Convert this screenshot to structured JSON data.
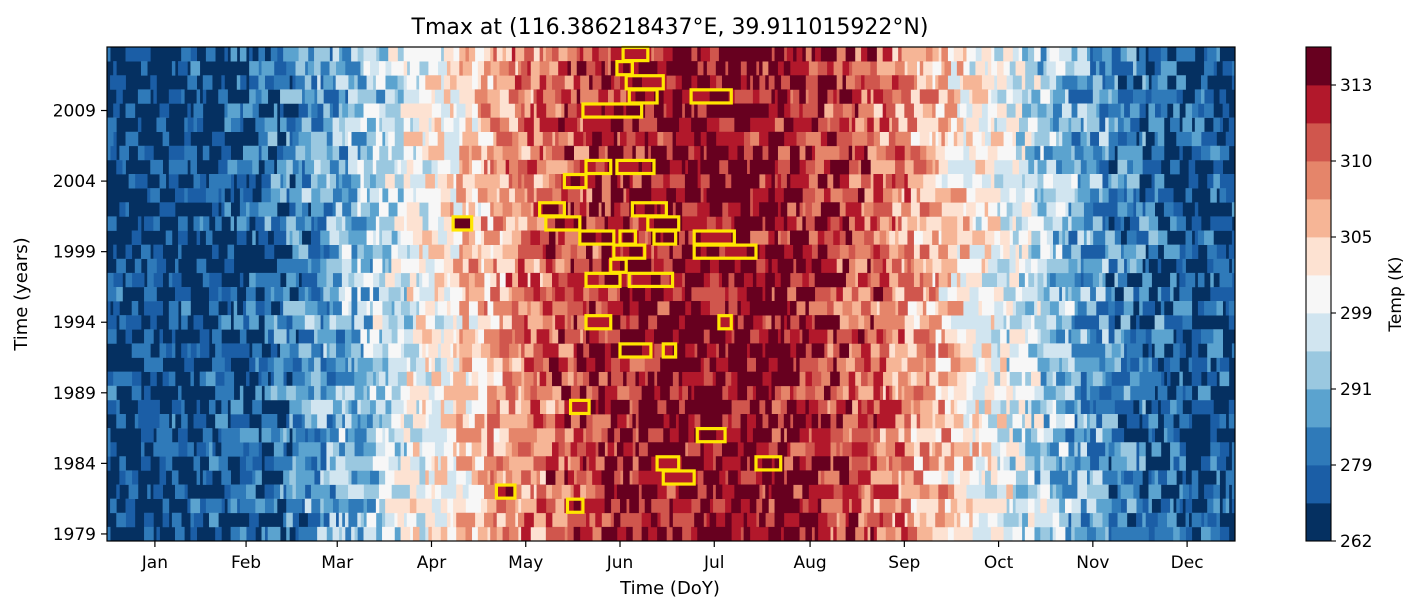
{
  "chart_data": {
    "type": "heatmap",
    "title": "Tmax at (116.386218437°E, 39.911015922°N)",
    "xlabel": "Time (DoY)",
    "ylabel": "Time (years)",
    "x_ticks": [
      "Jan",
      "Feb",
      "Mar",
      "Apr",
      "May",
      "Jun",
      "Jul",
      "Aug",
      "Sep",
      "Oct",
      "Nov",
      "Dec"
    ],
    "y_ticks": [
      "1979",
      "1984",
      "1989",
      "1994",
      "1999",
      "2004",
      "2009"
    ],
    "year_range": [
      1979,
      2013
    ],
    "day_range": [
      1,
      365
    ],
    "colorbar": {
      "label": "Temp (K)",
      "ticks": [
        "262",
        "279",
        "291",
        "299",
        "305",
        "310",
        "313"
      ],
      "colors": [
        "#053061",
        "#1b5ea6",
        "#2f7ab9",
        "#5ba3cf",
        "#9ac8e0",
        "#d1e5f0",
        "#f7f7f7",
        "#fde2d2",
        "#f6b596",
        "#e5856a",
        "#d0564d",
        "#b2182b",
        "#67001f"
      ]
    },
    "highlight_color": "#ffe600",
    "heatwaves": [
      {
        "year": 2013,
        "start": 168,
        "end": 175
      },
      {
        "year": 2012,
        "start": 166,
        "end": 170
      },
      {
        "year": 2011,
        "start": 169,
        "end": 180
      },
      {
        "year": 2010,
        "start": 170,
        "end": 178
      },
      {
        "year": 2010,
        "start": 190,
        "end": 202
      },
      {
        "year": 2009,
        "start": 155,
        "end": 173
      },
      {
        "year": 2005,
        "start": 156,
        "end": 163
      },
      {
        "year": 2005,
        "start": 166,
        "end": 177
      },
      {
        "year": 2004,
        "start": 149,
        "end": 155
      },
      {
        "year": 2002,
        "start": 141,
        "end": 148
      },
      {
        "year": 2002,
        "start": 171,
        "end": 181
      },
      {
        "year": 2001,
        "start": 113,
        "end": 118
      },
      {
        "year": 2001,
        "start": 143,
        "end": 153
      },
      {
        "year": 2001,
        "start": 176,
        "end": 185
      },
      {
        "year": 2000,
        "start": 154,
        "end": 164
      },
      {
        "year": 2000,
        "start": 167,
        "end": 171
      },
      {
        "year": 2000,
        "start": 178,
        "end": 184
      },
      {
        "year": 2000,
        "start": 191,
        "end": 203
      },
      {
        "year": 1999,
        "start": 165,
        "end": 174
      },
      {
        "year": 1999,
        "start": 191,
        "end": 210
      },
      {
        "year": 1998,
        "start": 164,
        "end": 168
      },
      {
        "year": 1997,
        "start": 156,
        "end": 166
      },
      {
        "year": 1997,
        "start": 170,
        "end": 183
      },
      {
        "year": 1994,
        "start": 156,
        "end": 163
      },
      {
        "year": 1994,
        "start": 199,
        "end": 202
      },
      {
        "year": 1992,
        "start": 167,
        "end": 176
      },
      {
        "year": 1992,
        "start": 181,
        "end": 184
      },
      {
        "year": 1988,
        "start": 151,
        "end": 156
      },
      {
        "year": 1986,
        "start": 192,
        "end": 200
      },
      {
        "year": 1984,
        "start": 179,
        "end": 185
      },
      {
        "year": 1984,
        "start": 211,
        "end": 218
      },
      {
        "year": 1983,
        "start": 181,
        "end": 190
      },
      {
        "year": 1982,
        "start": 127,
        "end": 132
      },
      {
        "year": 1981,
        "start": 150,
        "end": 154
      }
    ]
  }
}
